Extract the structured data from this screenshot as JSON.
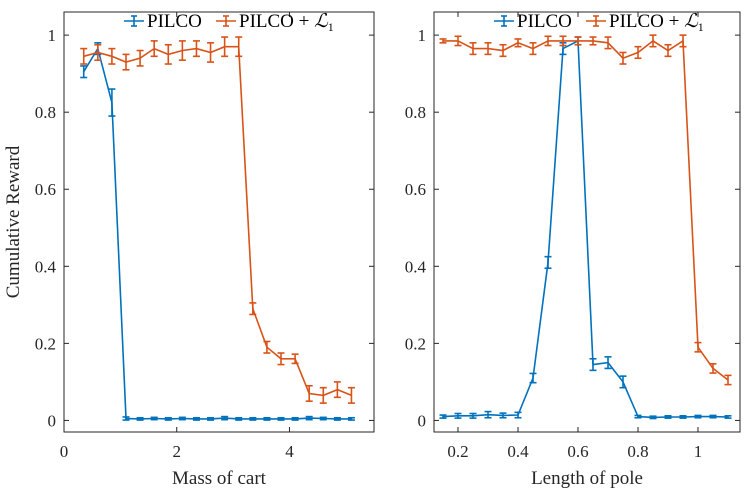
{
  "chart_data": [
    {
      "type": "line",
      "xlabel": "Mass of cart",
      "ylabel": "Cumulative Reward",
      "xlim": [
        0,
        5.5
      ],
      "ylim": [
        -0.03,
        1.06
      ],
      "xticks": [
        0,
        2,
        4
      ],
      "xtick_labels": [
        "0",
        "2",
        "4"
      ],
      "yticks": [
        0,
        0.2,
        0.4,
        0.6,
        0.8,
        1
      ],
      "ytick_labels": [
        "0",
        "0.2",
        "0.4",
        "0.6",
        "0.8",
        "1"
      ],
      "legend_position": "top",
      "series": [
        {
          "name": "PILCO",
          "color": "#0072BD",
          "x": [
            0.35,
            0.6,
            0.85,
            1.1,
            1.35,
            1.6,
            1.85,
            2.1,
            2.35,
            2.6,
            2.85,
            3.1,
            3.35,
            3.6,
            3.85,
            4.1,
            4.35,
            4.6,
            4.85,
            5.1
          ],
          "y": [
            0.905,
            0.965,
            0.825,
            0.005,
            0.004,
            0.005,
            0.004,
            0.005,
            0.004,
            0.004,
            0.006,
            0.004,
            0.004,
            0.004,
            0.004,
            0.004,
            0.006,
            0.005,
            0.004,
            0.004
          ],
          "err": [
            0.015,
            0.015,
            0.035,
            0.004,
            0.003,
            0.003,
            0.003,
            0.003,
            0.003,
            0.003,
            0.004,
            0.003,
            0.003,
            0.003,
            0.003,
            0.003,
            0.004,
            0.003,
            0.003,
            0.003
          ]
        },
        {
          "name": "PILCO + ℒ1",
          "color": "#D95319",
          "x": [
            0.35,
            0.6,
            0.85,
            1.1,
            1.35,
            1.6,
            1.85,
            2.1,
            2.35,
            2.6,
            2.85,
            3.1,
            3.35,
            3.6,
            3.85,
            4.1,
            4.35,
            4.6,
            4.85,
            5.1
          ],
          "y": [
            0.945,
            0.955,
            0.945,
            0.93,
            0.94,
            0.965,
            0.95,
            0.96,
            0.965,
            0.955,
            0.97,
            0.97,
            0.29,
            0.19,
            0.16,
            0.16,
            0.07,
            0.065,
            0.08,
            0.065
          ],
          "err": [
            0.02,
            0.02,
            0.02,
            0.02,
            0.02,
            0.02,
            0.025,
            0.025,
            0.02,
            0.025,
            0.025,
            0.025,
            0.015,
            0.015,
            0.015,
            0.012,
            0.02,
            0.02,
            0.02,
            0.02
          ]
        }
      ]
    },
    {
      "type": "line",
      "xlabel": "Length of pole",
      "ylabel": "",
      "xlim": [
        0.12,
        1.14
      ],
      "ylim": [
        -0.03,
        1.06
      ],
      "xticks": [
        0.2,
        0.4,
        0.6,
        0.8,
        1
      ],
      "xtick_labels": [
        "0.2",
        "0.4",
        "0.6",
        "0.8",
        "1"
      ],
      "yticks": [
        0,
        0.2,
        0.4,
        0.6,
        0.8,
        1
      ],
      "ytick_labels": [
        "0",
        "0.2",
        "0.4",
        "0.6",
        "0.8",
        "1"
      ],
      "legend_position": "top",
      "series": [
        {
          "name": "PILCO",
          "color": "#0072BD",
          "x": [
            0.15,
            0.2,
            0.25,
            0.3,
            0.35,
            0.4,
            0.45,
            0.5,
            0.55,
            0.6,
            0.65,
            0.7,
            0.75,
            0.8,
            0.85,
            0.9,
            0.95,
            1.0,
            1.05,
            1.1
          ],
          "y": [
            0.01,
            0.012,
            0.012,
            0.015,
            0.013,
            0.014,
            0.11,
            0.41,
            0.965,
            0.985,
            0.145,
            0.15,
            0.1,
            0.01,
            0.008,
            0.009,
            0.009,
            0.01,
            0.01,
            0.009
          ],
          "err": [
            0.004,
            0.006,
            0.006,
            0.008,
            0.006,
            0.007,
            0.012,
            0.015,
            0.015,
            0.01,
            0.015,
            0.015,
            0.015,
            0.003,
            0.003,
            0.003,
            0.003,
            0.003,
            0.003,
            0.003
          ]
        },
        {
          "name": "PILCO + ℒ1",
          "color": "#D95319",
          "x": [
            0.15,
            0.2,
            0.25,
            0.3,
            0.35,
            0.4,
            0.45,
            0.5,
            0.55,
            0.6,
            0.65,
            0.7,
            0.75,
            0.8,
            0.85,
            0.9,
            0.95,
            1.0,
            1.05,
            1.1
          ],
          "y": [
            0.985,
            0.985,
            0.965,
            0.965,
            0.96,
            0.98,
            0.965,
            0.985,
            0.985,
            0.985,
            0.985,
            0.98,
            0.94,
            0.955,
            0.985,
            0.96,
            0.985,
            0.19,
            0.135,
            0.105
          ],
          "err": [
            0.005,
            0.012,
            0.015,
            0.015,
            0.015,
            0.01,
            0.015,
            0.012,
            0.012,
            0.01,
            0.01,
            0.015,
            0.015,
            0.015,
            0.015,
            0.015,
            0.015,
            0.012,
            0.012,
            0.012
          ]
        }
      ]
    }
  ],
  "legend": {
    "items": [
      {
        "prefix": "PILCO",
        "suffix": ""
      },
      {
        "prefix": "PILCO + ",
        "suffix": "1",
        "math": "ℒ"
      }
    ]
  }
}
